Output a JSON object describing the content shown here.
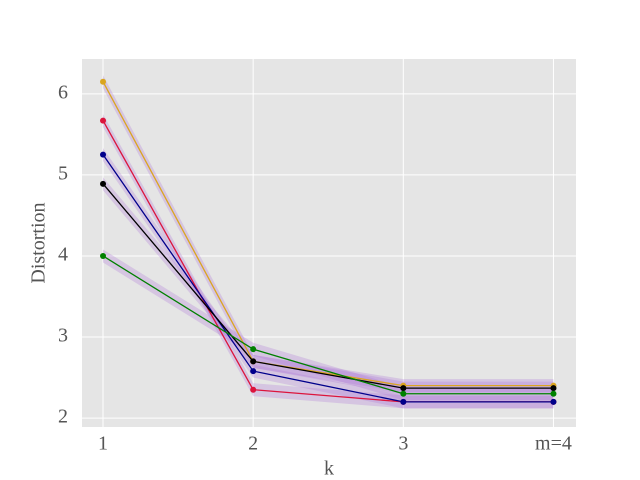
{
  "chart_data": {
    "type": "line",
    "x_label": "k",
    "y_label": "Distortion",
    "x": [
      1,
      2,
      3,
      4
    ],
    "series": [
      {
        "color": "#daa520",
        "values": [
          6.15,
          2.7,
          2.4,
          2.4
        ],
        "errors": [
          0.08,
          0.08,
          0.08,
          0.08
        ]
      },
      {
        "color": "#dc143c",
        "values": [
          5.67,
          2.35,
          2.2,
          2.2
        ],
        "errors": [
          0.08,
          0.08,
          0.08,
          0.08
        ]
      },
      {
        "color": "#00008b",
        "values": [
          5.25,
          2.58,
          2.2,
          2.2
        ],
        "errors": [
          0.08,
          0.08,
          0.08,
          0.08
        ]
      },
      {
        "color": "#000000",
        "values": [
          4.89,
          2.7,
          2.37,
          2.37
        ],
        "errors": [
          0.08,
          0.08,
          0.08,
          0.08
        ]
      },
      {
        "color": "#008000",
        "values": [
          4.0,
          2.85,
          2.3,
          2.3
        ],
        "errors": [
          0.08,
          0.08,
          0.08,
          0.08
        ]
      }
    ],
    "band_color": "#b07ad8",
    "xlim": [
      0.86,
      4.15
    ],
    "ylim": [
      1.89,
      6.43
    ],
    "xticks": [
      1,
      2,
      3,
      {
        "value": 4,
        "label": "m=4"
      }
    ],
    "yticks": [
      2,
      3,
      4,
      5,
      6
    ],
    "grid": true
  }
}
